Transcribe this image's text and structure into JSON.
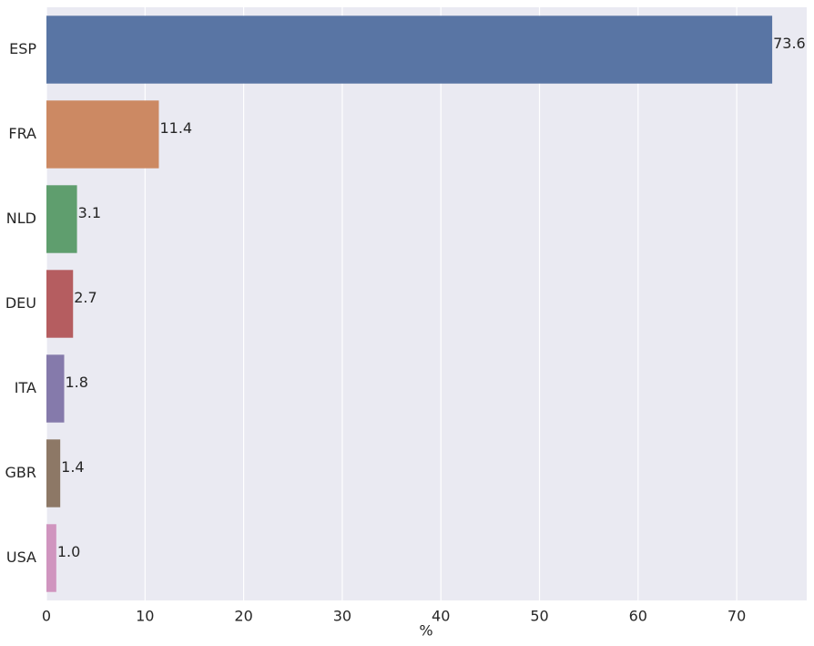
{
  "chart_data": {
    "type": "bar",
    "orientation": "horizontal",
    "x_label": "%",
    "categories": [
      "ESP",
      "FRA",
      "NLD",
      "DEU",
      "ITA",
      "GBR",
      "USA"
    ],
    "values": [
      73.6,
      11.4,
      3.1,
      2.7,
      1.8,
      1.4,
      1.0
    ],
    "value_labels": [
      "73.6",
      "11.4",
      "3.1",
      "2.7",
      "1.8",
      "1.4",
      "1.0"
    ],
    "colors": [
      "#5975a4",
      "#cc8963",
      "#5f9e6e",
      "#b55d60",
      "#857aab",
      "#8d7866",
      "#d095bf"
    ],
    "xlim": [
      0,
      77.1
    ],
    "xticks": [
      0,
      10,
      20,
      30,
      40,
      50,
      60,
      70
    ],
    "grid": true
  }
}
